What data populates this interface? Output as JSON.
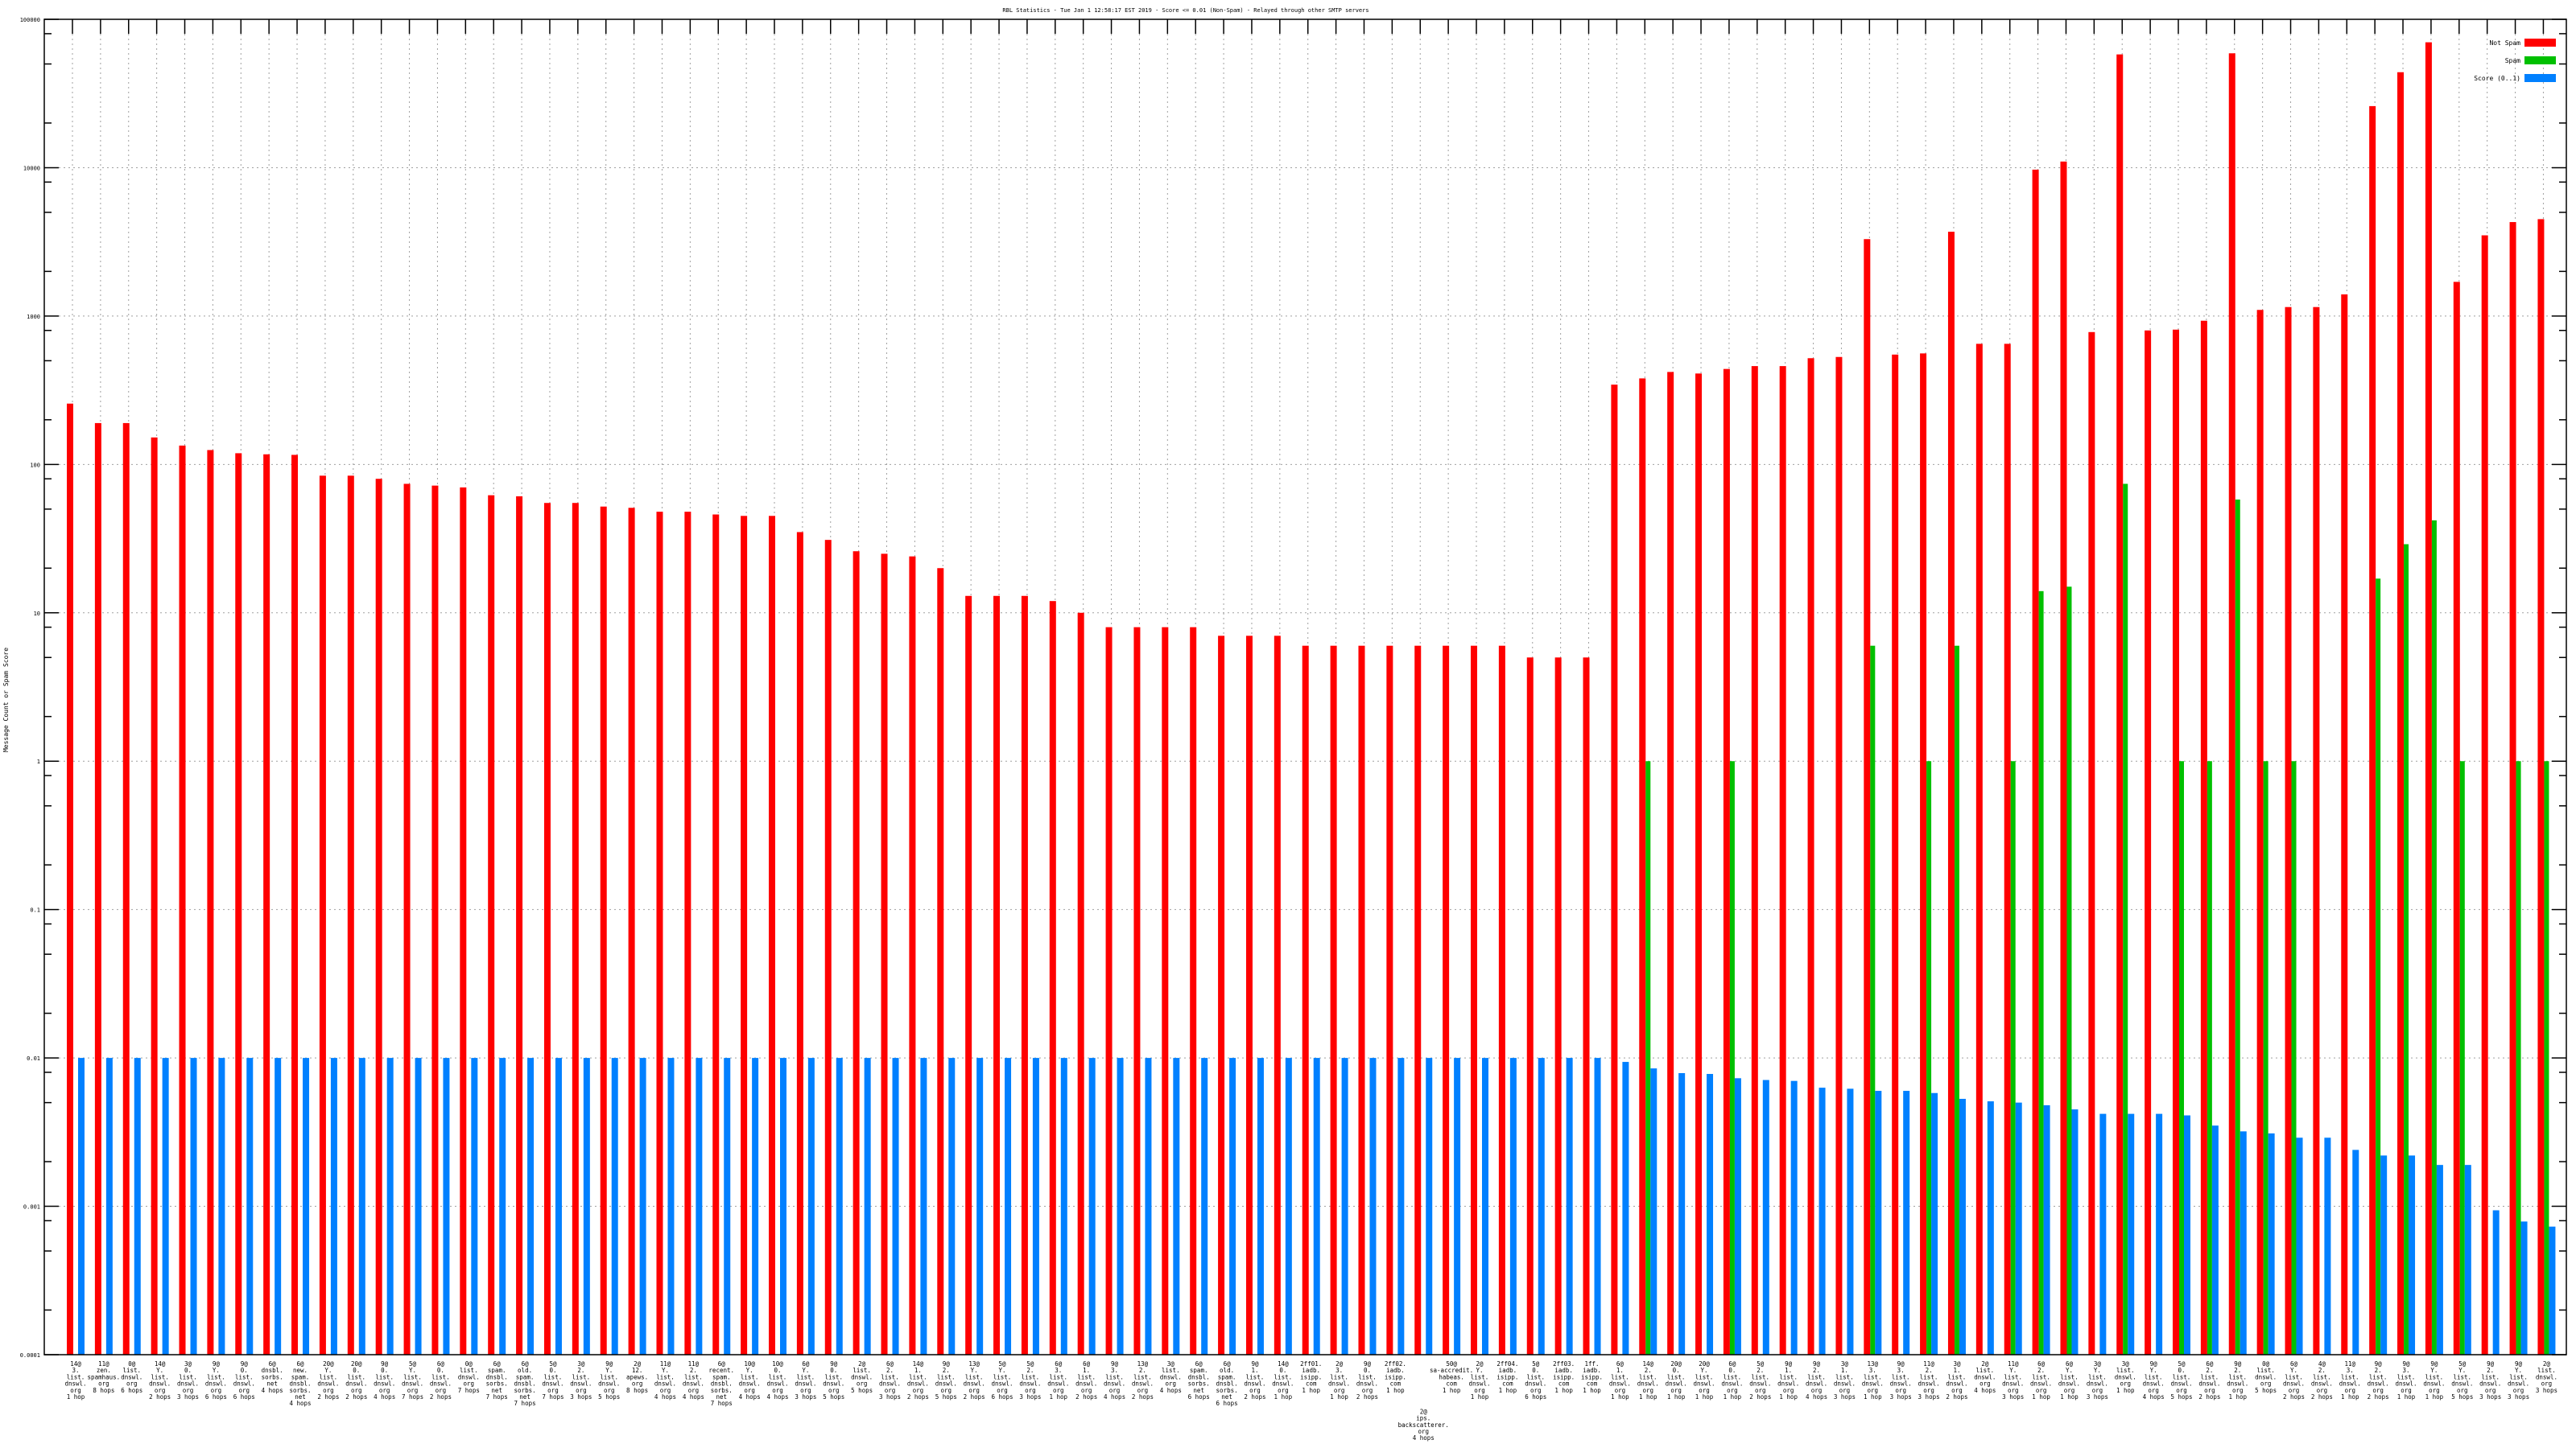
{
  "chart_data": {
    "type": "bar",
    "title": "RBL Statistics - Tue Jan  1 12:58:17 EST 2019 - Score <= 0.01 (Non-Spam) - Relayed through other SMTP servers",
    "xlabel": "",
    "ylabel": "Message Count or Spam Score",
    "yscale": "log",
    "ylim": [
      0.0001,
      100000
    ],
    "yticks": [
      "100000",
      "10000",
      "1000",
      "100",
      "10",
      "1",
      "0.1",
      "0.01",
      "0.001",
      "0.0001"
    ],
    "grid": true,
    "legend_position": "top-right",
    "categories": [
      [
        "14@",
        "3.",
        "list.",
        "dnswl.",
        "org",
        "1 hop"
      ],
      [
        "11@",
        "zen.",
        "spamhaus.",
        "org",
        "8 hops"
      ],
      [
        "0@",
        "list.",
        "dnswl.",
        "org",
        "6 hops"
      ],
      [
        "14@",
        "Y.",
        "list.",
        "dnswl.",
        "org",
        "2 hops"
      ],
      [
        "3@",
        "0.",
        "list.",
        "dnswl.",
        "org",
        "3 hops"
      ],
      [
        "9@",
        "Y.",
        "list.",
        "dnswl.",
        "org",
        "6 hops"
      ],
      [
        "9@",
        "0.",
        "list.",
        "dnswl.",
        "org",
        "6 hops"
      ],
      [
        "6@",
        "dnsbl.",
        "sorbs.",
        "net",
        "4 hops"
      ],
      [
        "6@",
        "new.",
        "spam.",
        "dnsbl.",
        "sorbs.",
        "net",
        "4 hops"
      ],
      [
        "20@",
        "Y.",
        "list.",
        "dnswl.",
        "org",
        "2 hops"
      ],
      [
        "20@",
        "0.",
        "list.",
        "dnswl.",
        "org",
        "2 hops"
      ],
      [
        "9@",
        "0.",
        "list.",
        "dnswl.",
        "org",
        "4 hops"
      ],
      [
        "5@",
        "Y.",
        "list.",
        "dnswl.",
        "org",
        "7 hops"
      ],
      [
        "6@",
        "0.",
        "list.",
        "dnswl.",
        "org",
        "2 hops"
      ],
      [
        "0@",
        "list.",
        "dnswl.",
        "org",
        "7 hops"
      ],
      [
        "6@",
        "spam.",
        "dnsbl.",
        "sorbs.",
        "net",
        "7 hops"
      ],
      [
        "6@",
        "old.",
        "spam.",
        "dnsbl.",
        "sorbs.",
        "net",
        "7 hops"
      ],
      [
        "5@",
        "0.",
        "list.",
        "dnswl.",
        "org",
        "7 hops"
      ],
      [
        "3@",
        "2.",
        "list.",
        "dnswl.",
        "org",
        "3 hops"
      ],
      [
        "9@",
        "Y.",
        "list.",
        "dnswl.",
        "org",
        "5 hops"
      ],
      [
        "2@",
        "12.",
        "apews.",
        "org",
        "8 hops"
      ],
      [
        "11@",
        "Y.",
        "list.",
        "dnswl.",
        "org",
        "4 hops"
      ],
      [
        "11@",
        "2.",
        "list.",
        "dnswl.",
        "org",
        "4 hops"
      ],
      [
        "6@",
        "recent.",
        "spam.",
        "dnsbl.",
        "sorbs.",
        "net",
        "7 hops"
      ],
      [
        "10@",
        "Y.",
        "list.",
        "dnswl.",
        "org",
        "4 hops"
      ],
      [
        "10@",
        "0.",
        "list.",
        "dnswl.",
        "org",
        "4 hops"
      ],
      [
        "6@",
        "Y.",
        "list.",
        "dnswl.",
        "org",
        "3 hops"
      ],
      [
        "9@",
        "0.",
        "list.",
        "dnswl.",
        "org",
        "5 hops"
      ],
      [
        "2@",
        "list.",
        "dnswl.",
        "org",
        "5 hops"
      ],
      [
        "6@",
        "2.",
        "list.",
        "dnswl.",
        "org",
        "3 hops"
      ],
      [
        "14@",
        "1.",
        "list.",
        "dnswl.",
        "org",
        "2 hops"
      ],
      [
        "9@",
        "2.",
        "list.",
        "dnswl.",
        "org",
        "5 hops"
      ],
      [
        "13@",
        "Y.",
        "list.",
        "dnswl.",
        "org",
        "2 hops"
      ],
      [
        "5@",
        "Y.",
        "list.",
        "dnswl.",
        "org",
        "6 hops"
      ],
      [
        "5@",
        "2.",
        "list.",
        "dnswl.",
        "org",
        "3 hops"
      ],
      [
        "6@",
        "3.",
        "list.",
        "dnswl.",
        "org",
        "1 hop"
      ],
      [
        "6@",
        "1.",
        "list.",
        "dnswl.",
        "org",
        "2 hops"
      ],
      [
        "9@",
        "3.",
        "list.",
        "dnswl.",
        "org",
        "4 hops"
      ],
      [
        "13@",
        "2.",
        "list.",
        "dnswl.",
        "org",
        "2 hops"
      ],
      [
        "3@",
        "list.",
        "dnswl.",
        "org",
        "4 hops"
      ],
      [
        "6@",
        "spam.",
        "dnsbl.",
        "sorbs.",
        "net",
        "6 hops"
      ],
      [
        "6@",
        "old.",
        "spam.",
        "dnsbl.",
        "sorbs.",
        "net",
        "6 hops"
      ],
      [
        "9@",
        "1.",
        "list.",
        "dnswl.",
        "org",
        "2 hops"
      ],
      [
        "14@",
        "0.",
        "list.",
        "dnswl.",
        "org",
        "1 hop"
      ],
      [
        "2ff01.",
        "iadb.",
        "isipp.",
        "com",
        "1 hop"
      ],
      [
        "2@",
        "3.",
        "list.",
        "dnswl.",
        "org",
        "1 hop"
      ],
      [
        "9@",
        "0.",
        "list.",
        "dnswl.",
        "org",
        "2 hops"
      ],
      [
        "2ff02.",
        "iadb.",
        "isipp.",
        "com",
        "1 hop"
      ],
      [
        "2@",
        "ips.",
        "backscatterer.",
        "org",
        "4 hops"
      ],
      [
        "50@",
        "sa-accredit.",
        "habeas.",
        "com",
        "1 hop"
      ],
      [
        "2@",
        "Y.",
        "list.",
        "dnswl.",
        "org",
        "1 hop"
      ],
      [
        "2ff04.",
        "iadb.",
        "isipp.",
        "com",
        "1 hop"
      ],
      [
        "5@",
        "0.",
        "list.",
        "dnswl.",
        "org",
        "6 hops"
      ],
      [
        "2ff03.",
        "iadb.",
        "isipp.",
        "com",
        "1 hop"
      ],
      [
        "1ff.",
        "iadb.",
        "isipp.",
        "com",
        "1 hop"
      ],
      [
        "6@",
        "1.",
        "list.",
        "dnswl.",
        "org",
        "1 hop"
      ],
      [
        "14@",
        "2.",
        "list.",
        "dnswl.",
        "org",
        "1 hop"
      ],
      [
        "20@",
        "0.",
        "list.",
        "dnswl.",
        "org",
        "1 hop"
      ],
      [
        "20@",
        "Y.",
        "list.",
        "dnswl.",
        "org",
        "1 hop"
      ],
      [
        "6@",
        "0.",
        "list.",
        "dnswl.",
        "org",
        "1 hop"
      ],
      [
        "5@",
        "2.",
        "list.",
        "dnswl.",
        "org",
        "2 hops"
      ],
      [
        "9@",
        "1.",
        "list.",
        "dnswl.",
        "org",
        "1 hop"
      ],
      [
        "9@",
        "2.",
        "list.",
        "dnswl.",
        "org",
        "4 hops"
      ],
      [
        "3@",
        "1.",
        "list.",
        "dnswl.",
        "org",
        "3 hops"
      ],
      [
        "13@",
        "3.",
        "list.",
        "dnswl.",
        "org",
        "1 hop"
      ],
      [
        "9@",
        "3.",
        "list.",
        "dnswl.",
        "org",
        "3 hops"
      ],
      [
        "11@",
        "2.",
        "list.",
        "dnswl.",
        "org",
        "3 hops"
      ],
      [
        "3@",
        "1.",
        "list.",
        "dnswl.",
        "org",
        "2 hops"
      ],
      [
        "2@",
        "list.",
        "dnswl.",
        "org",
        "4 hops"
      ],
      [
        "11@",
        "Y.",
        "list.",
        "dnswl.",
        "org",
        "3 hops"
      ],
      [
        "6@",
        "2.",
        "list.",
        "dnswl.",
        "org",
        "1 hop"
      ],
      [
        "6@",
        "Y.",
        "list.",
        "dnswl.",
        "org",
        "1 hop"
      ],
      [
        "3@",
        "Y.",
        "list.",
        "dnswl.",
        "org",
        "3 hops"
      ],
      [
        "3@",
        "list.",
        "dnswl.",
        "org",
        "1 hop"
      ],
      [
        "9@",
        "Y.",
        "list.",
        "dnswl.",
        "org",
        "4 hops"
      ],
      [
        "5@",
        "0.",
        "list.",
        "dnswl.",
        "org",
        "5 hops"
      ],
      [
        "6@",
        "2.",
        "list.",
        "dnswl.",
        "org",
        "2 hops"
      ],
      [
        "9@",
        "2.",
        "list.",
        "dnswl.",
        "org",
        "1 hop"
      ],
      [
        "0@",
        "list.",
        "dnswl.",
        "org",
        "5 hops"
      ],
      [
        "6@",
        "Y.",
        "list.",
        "dnswl.",
        "org",
        "2 hops"
      ],
      [
        "4@",
        "2.",
        "list.",
        "dnswl.",
        "org",
        "2 hops"
      ],
      [
        "11@",
        "3.",
        "list.",
        "dnswl.",
        "org",
        "1 hop"
      ],
      [
        "9@",
        "2.",
        "list.",
        "dnswl.",
        "org",
        "2 hops"
      ],
      [
        "9@",
        "3.",
        "list.",
        "dnswl.",
        "org",
        "1 hop"
      ],
      [
        "9@",
        "Y.",
        "list.",
        "dnswl.",
        "org",
        "1 hop"
      ],
      [
        "5@",
        "Y.",
        "list.",
        "dnswl.",
        "org",
        "5 hops"
      ],
      [
        "9@",
        "2.",
        "list.",
        "dnswl.",
        "org",
        "3 hops"
      ],
      [
        "9@",
        "Y.",
        "list.",
        "dnswl.",
        "org",
        "3 hops"
      ],
      [
        "2@",
        "list.",
        "dnswl.",
        "org",
        "3 hops"
      ]
    ],
    "series": [
      {
        "name": "Not Spam",
        "color": "#ff0000",
        "values": [
          257,
          190,
          190,
          152,
          134,
          125,
          119,
          117,
          116,
          84,
          84,
          80,
          74,
          72,
          70,
          62,
          61,
          55,
          55,
          52,
          51,
          48,
          48,
          46,
          45,
          45,
          35,
          31,
          26,
          25,
          24,
          20,
          13,
          13,
          13,
          12,
          10,
          8,
          8,
          8,
          8,
          7,
          7,
          7,
          6,
          6,
          6,
          6,
          6,
          6,
          6,
          6,
          5,
          5,
          5,
          345,
          380,
          420,
          410,
          440,
          460,
          460,
          520,
          530,
          3300,
          550,
          560,
          3700,
          650,
          650,
          9700,
          11000,
          780,
          58000,
          800,
          810,
          930,
          59000,
          1100,
          1150,
          1150,
          1400,
          26000,
          44000,
          70000,
          1700,
          3500,
          4300,
          4500
        ]
      },
      {
        "name": "Spam",
        "color": "#00c000",
        "values": [
          0,
          0,
          0,
          0,
          0,
          0,
          0,
          0,
          0,
          0,
          0,
          0,
          0,
          0,
          0,
          0,
          0,
          0,
          0,
          0,
          0,
          0,
          0,
          0,
          0,
          0,
          0,
          0,
          0,
          0,
          0,
          0,
          0,
          0,
          0,
          0,
          0,
          0,
          0,
          0,
          0,
          0,
          0,
          0,
          0,
          0,
          0,
          0,
          0,
          0,
          0,
          0,
          0,
          0,
          0,
          0,
          1,
          0,
          0,
          1,
          0,
          0,
          0,
          0,
          6,
          0,
          1,
          6,
          0,
          1,
          14,
          15,
          0,
          74,
          0,
          1,
          1,
          58,
          1,
          1,
          0,
          0,
          17,
          29,
          42,
          1,
          0,
          1,
          1
        ]
      },
      {
        "name": "Score (0..1)",
        "color": "#0080ff",
        "values": [
          0.01,
          0.01,
          0.01,
          0.01,
          0.01,
          0.01,
          0.01,
          0.01,
          0.01,
          0.01,
          0.01,
          0.01,
          0.01,
          0.01,
          0.01,
          0.01,
          0.01,
          0.01,
          0.01,
          0.01,
          0.01,
          0.01,
          0.01,
          0.01,
          0.01,
          0.01,
          0.01,
          0.01,
          0.01,
          0.01,
          0.01,
          0.01,
          0.01,
          0.01,
          0.01,
          0.01,
          0.01,
          0.01,
          0.01,
          0.01,
          0.01,
          0.01,
          0.01,
          0.01,
          0.01,
          0.01,
          0.01,
          0.01,
          0.01,
          0.01,
          0.01,
          0.01,
          0.01,
          0.01,
          0.01,
          0.0094,
          0.0085,
          0.0079,
          0.0078,
          0.0073,
          0.0071,
          0.007,
          0.0063,
          0.0062,
          0.006,
          0.006,
          0.0058,
          0.0053,
          0.0051,
          0.005,
          0.0048,
          0.0045,
          0.0042,
          0.0042,
          0.0042,
          0.0041,
          0.0035,
          0.0032,
          0.0031,
          0.0029,
          0.0029,
          0.0024,
          0.0022,
          0.0022,
          0.0019,
          0.0019,
          0.00094,
          0.00079,
          0.00073
        ]
      }
    ]
  }
}
